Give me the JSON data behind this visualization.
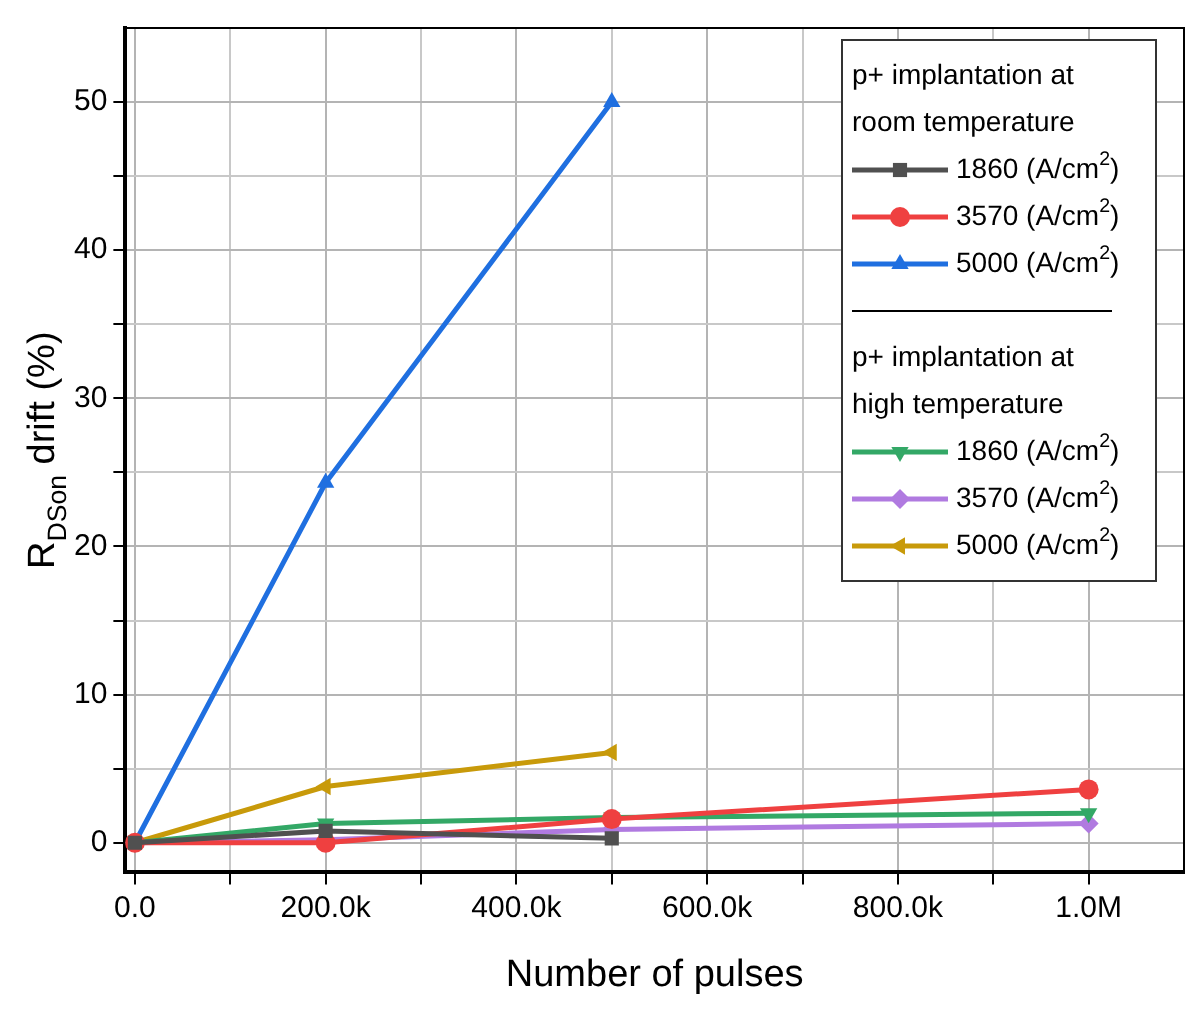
{
  "chart_data": {
    "type": "line",
    "xlabel": "Number of pulses",
    "ylabel": "R$_{DSon}$ drift (%)",
    "x": [
      0,
      200000,
      500000,
      1000000
    ],
    "series": [
      {
        "name": "1860 (A/cm$^{2}$)",
        "color": "#505050",
        "marker": "square",
        "values": [
          0,
          0.8,
          0.3,
          null
        ]
      },
      {
        "name": "3570 (A/cm$^{2}$)",
        "color": "#ef4040",
        "marker": "circle",
        "values": [
          0,
          0,
          1.6,
          3.6
        ]
      },
      {
        "name": "5000 (A/cm$^{2}$)",
        "color": "#1f6fe0",
        "marker": "triangle",
        "values": [
          0,
          24.3,
          50,
          null
        ]
      },
      {
        "name": "1860 (A/cm$^{2}$)",
        "color": "#33a866",
        "marker": "triangle_down",
        "values": [
          0,
          1.3,
          1.7,
          2.0
        ]
      },
      {
        "name": "3570 (A/cm$^{2}$)",
        "color": "#b07ae0",
        "marker": "diamond",
        "values": [
          0,
          0.2,
          0.9,
          1.3
        ]
      },
      {
        "name": "5000 (A/cm$^{2}$)",
        "color": "#c89a0a",
        "marker": "triangle_left",
        "values": [
          0,
          3.8,
          6.1,
          null
        ]
      }
    ],
    "annotations": [
      "p+ implantation at room temperature",
      "p+ implantation at high temperature"
    ],
    "xlim": [
      -10000,
      1100000
    ],
    "xticks": [
      {
        "value": 0,
        "label": "0.0"
      },
      {
        "value": 100000,
        "label": null
      },
      {
        "value": 200000,
        "label": "200.0k"
      },
      {
        "value": 300000,
        "label": null
      },
      {
        "value": 400000,
        "label": "400.0k"
      },
      {
        "value": 500000,
        "label": null
      },
      {
        "value": 600000,
        "label": "600.0k"
      },
      {
        "value": 700000,
        "label": null
      },
      {
        "value": 800000,
        "label": "800.0k"
      },
      {
        "value": 900000,
        "label": null
      },
      {
        "value": 1000000,
        "label": "1.0M"
      }
    ],
    "ylim": [
      -2,
      55
    ],
    "yticks": [
      0,
      {
        "value": 5,
        "label": null
      },
      10,
      {
        "value": 15,
        "label": null
      },
      20,
      {
        "value": 25,
        "label": null
      },
      30,
      {
        "value": 35,
        "label": null
      },
      40,
      {
        "value": 45,
        "label": null
      },
      50
    ],
    "grid": true,
    "legend": "top right",
    "line_style": "solid"
  }
}
